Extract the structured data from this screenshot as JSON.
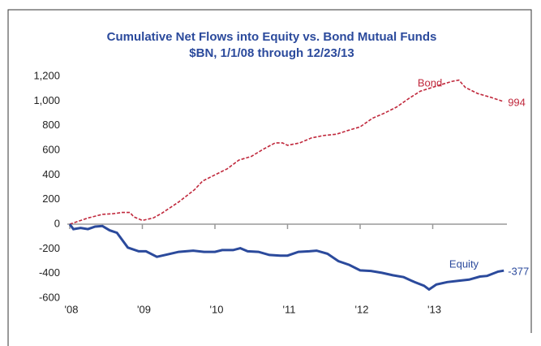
{
  "chart_data": {
    "type": "line",
    "title": "Cumulative Net Flows into Equity vs. Bond Mutual Funds",
    "subtitle": "$BN, 1/1/08 through 12/23/13",
    "xlim": [
      2008,
      2014
    ],
    "xticks": [
      {
        "value": 2008,
        "label": "'08"
      },
      {
        "value": 2009,
        "label": "'09"
      },
      {
        "value": 2010,
        "label": "'10"
      },
      {
        "value": 2011,
        "label": "'11"
      },
      {
        "value": 2012,
        "label": "'12"
      },
      {
        "value": 2013,
        "label": "'13"
      }
    ],
    "ylim": [
      -600,
      1200
    ],
    "yticks": [
      -600,
      -400,
      -200,
      0,
      200,
      400,
      600,
      800,
      {
        "value": 1000,
        "label": "1,000"
      },
      {
        "value": 1200,
        "label": "1,200"
      }
    ],
    "series": [
      {
        "name": "Bond",
        "color": "#c0283c",
        "dashed": true,
        "x": [
          2008.0,
          2008.25,
          2008.45,
          2008.6,
          2008.72,
          2008.83,
          2008.88,
          2009.0,
          2009.15,
          2009.27,
          2009.5,
          2009.72,
          2009.83,
          2010.0,
          2010.17,
          2010.33,
          2010.5,
          2010.67,
          2010.83,
          2010.93,
          2011.0,
          2011.17,
          2011.33,
          2011.5,
          2011.67,
          2011.83,
          2012.0,
          2012.17,
          2012.33,
          2012.5,
          2012.67,
          2012.83,
          2012.94,
          2013.1,
          2013.27,
          2013.36,
          2013.45,
          2013.62,
          2013.8,
          2013.98
        ],
        "values": [
          0,
          50,
          80,
          85,
          95,
          95,
          60,
          30,
          50,
          90,
          180,
          280,
          350,
          400,
          450,
          520,
          550,
          610,
          660,
          660,
          640,
          660,
          700,
          720,
          730,
          760,
          790,
          860,
          900,
          950,
          1020,
          1080,
          1100,
          1130,
          1160,
          1170,
          1110,
          1060,
          1030,
          994
        ]
      },
      {
        "name": "Equity",
        "color": "#2b4a9c",
        "dashed": false,
        "x": [
          2008.0,
          2008.05,
          2008.15,
          2008.25,
          2008.35,
          2008.45,
          2008.55,
          2008.65,
          2008.8,
          2008.95,
          2009.05,
          2009.2,
          2009.35,
          2009.5,
          2009.7,
          2009.85,
          2010.0,
          2010.1,
          2010.25,
          2010.35,
          2010.45,
          2010.6,
          2010.75,
          2010.9,
          2011.0,
          2011.15,
          2011.3,
          2011.4,
          2011.55,
          2011.7,
          2011.85,
          2012.0,
          2012.15,
          2012.3,
          2012.45,
          2012.6,
          2012.75,
          2012.88,
          2012.95,
          2013.05,
          2013.2,
          2013.35,
          2013.5,
          2013.65,
          2013.75,
          2013.9,
          2013.98
        ],
        "values": [
          0,
          -40,
          -30,
          -40,
          -20,
          -15,
          -50,
          -70,
          -190,
          -220,
          -220,
          -265,
          -245,
          -225,
          -215,
          -225,
          -225,
          -210,
          -210,
          -195,
          -220,
          -225,
          -250,
          -255,
          -255,
          -225,
          -220,
          -215,
          -240,
          -300,
          -330,
          -375,
          -380,
          -395,
          -415,
          -430,
          -470,
          -500,
          -530,
          -490,
          -470,
          -460,
          -450,
          -425,
          -420,
          -385,
          -377
        ]
      }
    ]
  }
}
